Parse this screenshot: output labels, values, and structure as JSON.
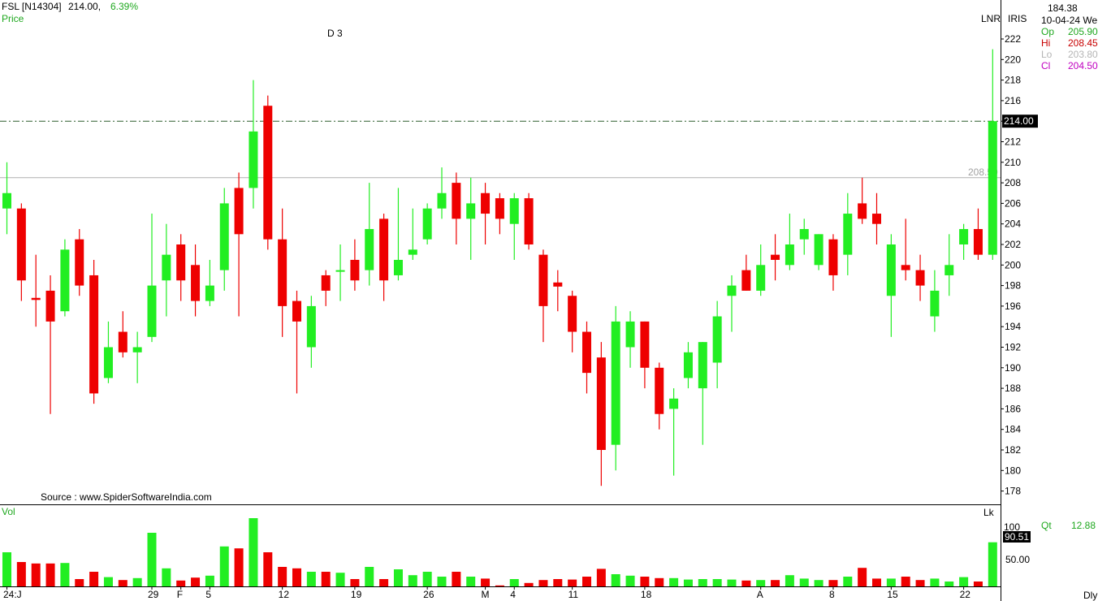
{
  "header": {
    "symbol": "FSL [N14304]",
    "price": "214.00,",
    "change": "6.39%",
    "panel_label": "Price",
    "marker": "D 3",
    "source": "Source : www.SpiderSoftwareIndia.com"
  },
  "right_panel": {
    "top_value": "184.38",
    "date": "10-04-24 We",
    "lnr": "LNR",
    "iris": "IRIS",
    "open_label": "Op",
    "open_value": "205.90",
    "high_label": "Hi",
    "high_value": "208.45",
    "low_label": "Lo",
    "low_value": "203.80",
    "close_label": "Cl",
    "close_value": "204.50",
    "qt_label": "Qt",
    "qt_value": "12.88",
    "lk": "Lk",
    "dly": "Dly"
  },
  "volume_panel": {
    "label": "Vol",
    "current_value": "90.51",
    "tick_50": "50.00",
    "tick_100": "100"
  },
  "chart_data": {
    "type": "candlestick",
    "price_ticks": [
      178,
      180,
      182,
      184,
      186,
      188,
      190,
      192,
      194,
      196,
      198,
      200,
      202,
      204,
      206,
      208,
      210,
      212,
      214,
      216,
      218,
      220,
      222
    ],
    "ylim": [
      176.5,
      224
    ],
    "last_price_label": "214.00",
    "last_price": 214.0,
    "ref_line_label": "208.50",
    "ref_line": 208.5,
    "x_labels": [
      "24:J",
      "29",
      "F",
      "5",
      "12",
      "19",
      "26",
      "M",
      "4",
      "11",
      "18",
      "A",
      "8",
      "15",
      "22"
    ],
    "x_label_index": [
      0,
      10,
      12,
      14,
      19,
      24,
      29,
      33,
      35,
      39,
      44,
      52,
      57,
      61,
      66
    ],
    "candles": [
      {
        "o": 205.5,
        "h": 210,
        "l": 203,
        "c": 207,
        "v": 70
      },
      {
        "o": 205.5,
        "h": 206,
        "l": 196.5,
        "c": 198.5,
        "v": 50
      },
      {
        "o": 196.8,
        "h": 201,
        "l": 194,
        "c": 196.6,
        "v": 47
      },
      {
        "o": 197.5,
        "h": 199,
        "l": 185.5,
        "c": 194.5,
        "v": 47
      },
      {
        "o": 195.5,
        "h": 202.5,
        "l": 195,
        "c": 201.5,
        "v": 48
      },
      {
        "o": 202.5,
        "h": 203.5,
        "l": 197,
        "c": 198,
        "v": 15
      },
      {
        "o": 199,
        "h": 200.5,
        "l": 186.5,
        "c": 187.5,
        "v": 30
      },
      {
        "o": 189,
        "h": 194.5,
        "l": 188.5,
        "c": 192,
        "v": 19
      },
      {
        "o": 193.5,
        "h": 195.5,
        "l": 191,
        "c": 191.5,
        "v": 13
      },
      {
        "o": 191.5,
        "h": 193.5,
        "l": 188.5,
        "c": 192,
        "v": 17
      },
      {
        "o": 193,
        "h": 205,
        "l": 192.5,
        "c": 198,
        "v": 110
      },
      {
        "o": 198.5,
        "h": 204,
        "l": 195,
        "c": 201,
        "v": 37
      },
      {
        "o": 202,
        "h": 203,
        "l": 196.5,
        "c": 198.5,
        "v": 12
      },
      {
        "o": 200,
        "h": 202,
        "l": 195,
        "c": 196.5,
        "v": 18
      },
      {
        "o": 196.5,
        "h": 200.5,
        "l": 196,
        "c": 198,
        "v": 22
      },
      {
        "o": 199.5,
        "h": 207.5,
        "l": 197.5,
        "c": 206,
        "v": 82
      },
      {
        "o": 207.5,
        "h": 209,
        "l": 195,
        "c": 203,
        "v": 78
      },
      {
        "o": 207.5,
        "h": 218,
        "l": 205.5,
        "c": 213,
        "v": 140
      },
      {
        "o": 215.5,
        "h": 216.5,
        "l": 201.5,
        "c": 202.5,
        "v": 70
      },
      {
        "o": 202.5,
        "h": 205.5,
        "l": 193,
        "c": 196,
        "v": 40
      },
      {
        "o": 196.5,
        "h": 197.5,
        "l": 187.5,
        "c": 194.5,
        "v": 37
      },
      {
        "o": 192,
        "h": 197,
        "l": 190,
        "c": 196,
        "v": 30
      },
      {
        "o": 199,
        "h": 199.5,
        "l": 196,
        "c": 197.5,
        "v": 30
      },
      {
        "o": 199.5,
        "h": 202,
        "l": 196.5,
        "c": 199.5,
        "v": 28
      },
      {
        "o": 200.5,
        "h": 202.5,
        "l": 197.5,
        "c": 198.5,
        "v": 15
      },
      {
        "o": 199.5,
        "h": 208,
        "l": 198,
        "c": 203.5,
        "v": 40
      },
      {
        "o": 204.5,
        "h": 205,
        "l": 196.5,
        "c": 198.5,
        "v": 15
      },
      {
        "o": 199,
        "h": 207.5,
        "l": 198.5,
        "c": 200.5,
        "v": 35
      },
      {
        "o": 201,
        "h": 205.5,
        "l": 200.5,
        "c": 201.5,
        "v": 23
      },
      {
        "o": 202.5,
        "h": 206,
        "l": 202,
        "c": 205.5,
        "v": 30
      },
      {
        "o": 205.5,
        "h": 209.5,
        "l": 204.5,
        "c": 207,
        "v": 20
      },
      {
        "o": 208,
        "h": 209,
        "l": 202,
        "c": 204.5,
        "v": 30
      },
      {
        "o": 204.5,
        "h": 208.5,
        "l": 200.5,
        "c": 206,
        "v": 20
      },
      {
        "o": 207,
        "h": 208,
        "l": 202,
        "c": 205,
        "v": 16
      },
      {
        "o": 206.5,
        "h": 207,
        "l": 203,
        "c": 204.5,
        "v": 2
      },
      {
        "o": 204,
        "h": 207,
        "l": 200.5,
        "c": 206.5,
        "v": 15
      },
      {
        "o": 206.5,
        "h": 207,
        "l": 201.5,
        "c": 202,
        "v": 7
      },
      {
        "o": 201,
        "h": 201.5,
        "l": 192.5,
        "c": 196,
        "v": 13
      },
      {
        "o": 198.3,
        "h": 199.5,
        "l": 195.5,
        "c": 197.9,
        "v": 15
      },
      {
        "o": 197,
        "h": 197.5,
        "l": 191.5,
        "c": 193.5,
        "v": 14
      },
      {
        "o": 193.5,
        "h": 194.5,
        "l": 187.5,
        "c": 189.5,
        "v": 20
      },
      {
        "o": 191,
        "h": 192.5,
        "l": 178.5,
        "c": 182,
        "v": 36
      },
      {
        "o": 182.5,
        "h": 196,
        "l": 180,
        "c": 194.5,
        "v": 25
      },
      {
        "o": 192,
        "h": 195.5,
        "l": 190,
        "c": 194.5,
        "v": 22
      },
      {
        "o": 194.5,
        "h": 194.5,
        "l": 188,
        "c": 190,
        "v": 20
      },
      {
        "o": 190,
        "h": 190.5,
        "l": 184,
        "c": 185.5,
        "v": 17
      },
      {
        "o": 186,
        "h": 188,
        "l": 179.5,
        "c": 187,
        "v": 17
      },
      {
        "o": 189,
        "h": 192.5,
        "l": 188,
        "c": 191.5,
        "v": 14
      },
      {
        "o": 188,
        "h": 192.5,
        "l": 182.5,
        "c": 192.5,
        "v": 15
      },
      {
        "o": 190.5,
        "h": 196.5,
        "l": 188,
        "c": 195,
        "v": 15
      },
      {
        "o": 197,
        "h": 199,
        "l": 193.5,
        "c": 198,
        "v": 14
      },
      {
        "o": 199.5,
        "h": 201,
        "l": 197.5,
        "c": 197.5,
        "v": 12
      },
      {
        "o": 197.5,
        "h": 202,
        "l": 197,
        "c": 200,
        "v": 13
      },
      {
        "o": 201,
        "h": 203,
        "l": 198.5,
        "c": 200.5,
        "v": 13
      },
      {
        "o": 200,
        "h": 205,
        "l": 199.5,
        "c": 202,
        "v": 23
      },
      {
        "o": 202.5,
        "h": 204.5,
        "l": 201,
        "c": 203.5,
        "v": 16
      },
      {
        "o": 200,
        "h": 203,
        "l": 199.5,
        "c": 203,
        "v": 13
      },
      {
        "o": 202.5,
        "h": 203,
        "l": 197.5,
        "c": 199,
        "v": 13
      },
      {
        "o": 201,
        "h": 207,
        "l": 199,
        "c": 205,
        "v": 20
      },
      {
        "o": 206,
        "h": 208.5,
        "l": 204,
        "c": 204.5,
        "v": 38
      },
      {
        "o": 205,
        "h": 207,
        "l": 202,
        "c": 204,
        "v": 16
      },
      {
        "o": 197,
        "h": 203,
        "l": 193,
        "c": 202,
        "v": 16
      },
      {
        "o": 200,
        "h": 204.5,
        "l": 198.5,
        "c": 199.5,
        "v": 20
      },
      {
        "o": 199.5,
        "h": 201,
        "l": 196.5,
        "c": 198,
        "v": 13
      },
      {
        "o": 195,
        "h": 199.5,
        "l": 193.5,
        "c": 197.5,
        "v": 16
      },
      {
        "o": 199,
        "h": 203,
        "l": 197,
        "c": 200,
        "v": 10
      },
      {
        "o": 202,
        "h": 204,
        "l": 200.5,
        "c": 203.5,
        "v": 19
      },
      {
        "o": 203.5,
        "h": 205.5,
        "l": 200.5,
        "c": 201,
        "v": 10
      },
      {
        "o": 201,
        "h": 221,
        "l": 200.5,
        "c": 214,
        "v": 90.51
      }
    ]
  }
}
